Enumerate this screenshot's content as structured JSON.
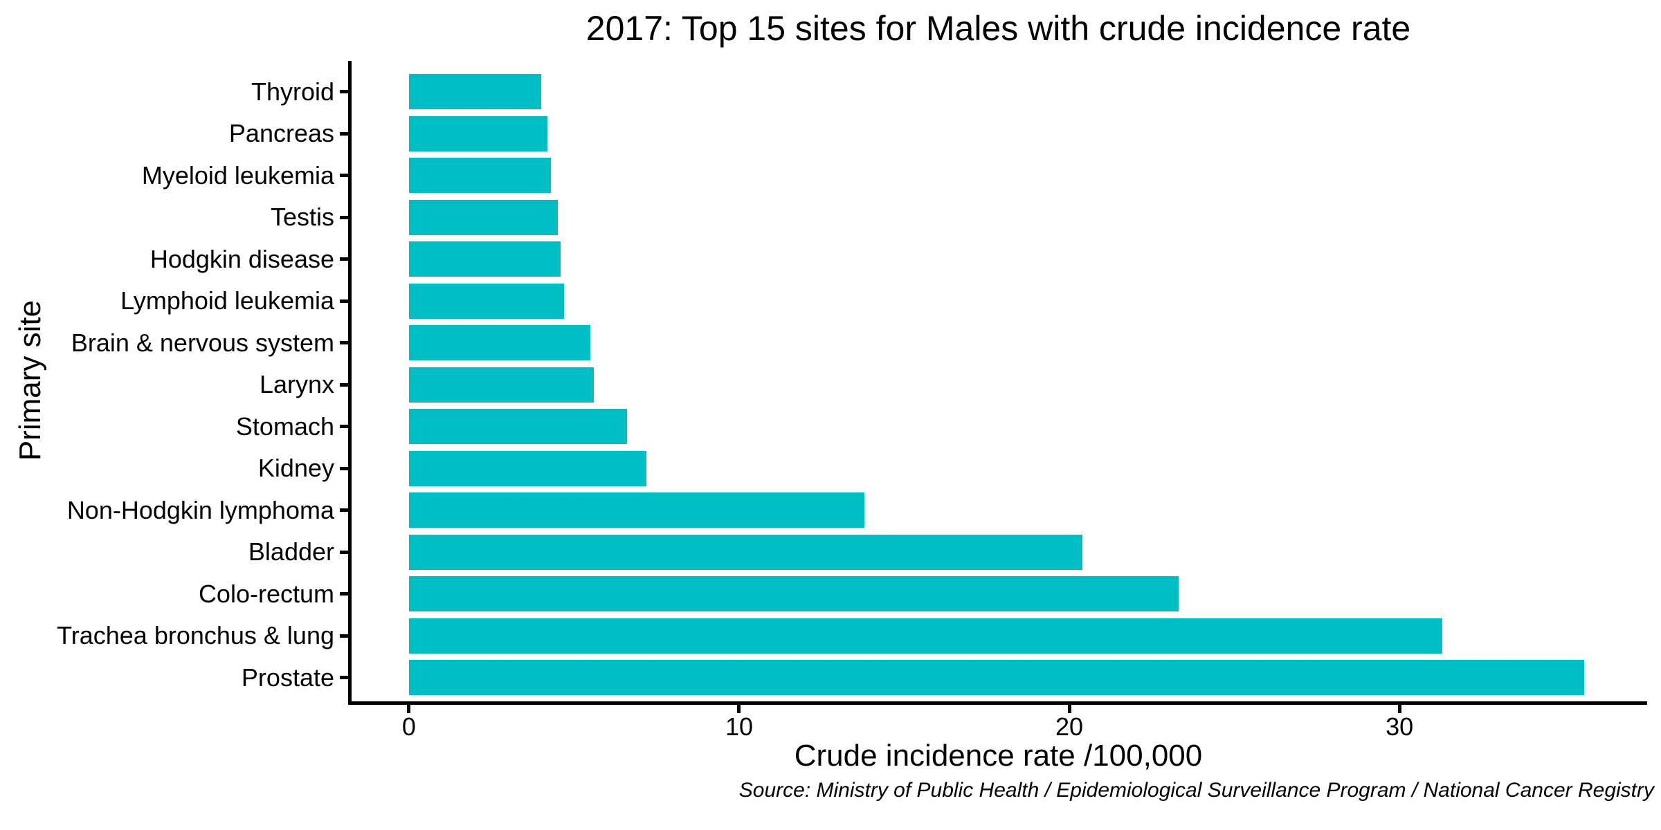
{
  "chart_data": {
    "type": "bar",
    "orientation": "horizontal",
    "title": "2017: Top 15 sites for Males with crude incidence rate",
    "xlabel": "Crude incidence rate /100,000",
    "ylabel": "Primary site",
    "source_note": "Source: Ministry of Public Health / Epidemiological Surveillance Program / National Cancer Registry",
    "categories": [
      "Thyroid",
      "Pancreas",
      "Myeloid leukemia",
      "Testis",
      "Hodgkin disease",
      "Lymphoid leukemia",
      "Brain & nervous system",
      "Larynx",
      "Stomach",
      "Kidney",
      "Non-Hodgkin lymphoma",
      "Bladder",
      "Colo-rectum",
      "Trachea bronchus & lung",
      "Prostate"
    ],
    "values": [
      4.0,
      4.2,
      4.3,
      4.5,
      4.6,
      4.7,
      5.5,
      5.6,
      6.6,
      7.2,
      13.8,
      20.4,
      23.3,
      31.3,
      35.6
    ],
    "x_ticks": [
      0,
      10,
      20,
      30
    ],
    "xlim": [
      -1.8,
      37.5
    ],
    "bar_color": "#00BFC4",
    "axis_color": "#000000",
    "grid": false,
    "legend": false
  }
}
